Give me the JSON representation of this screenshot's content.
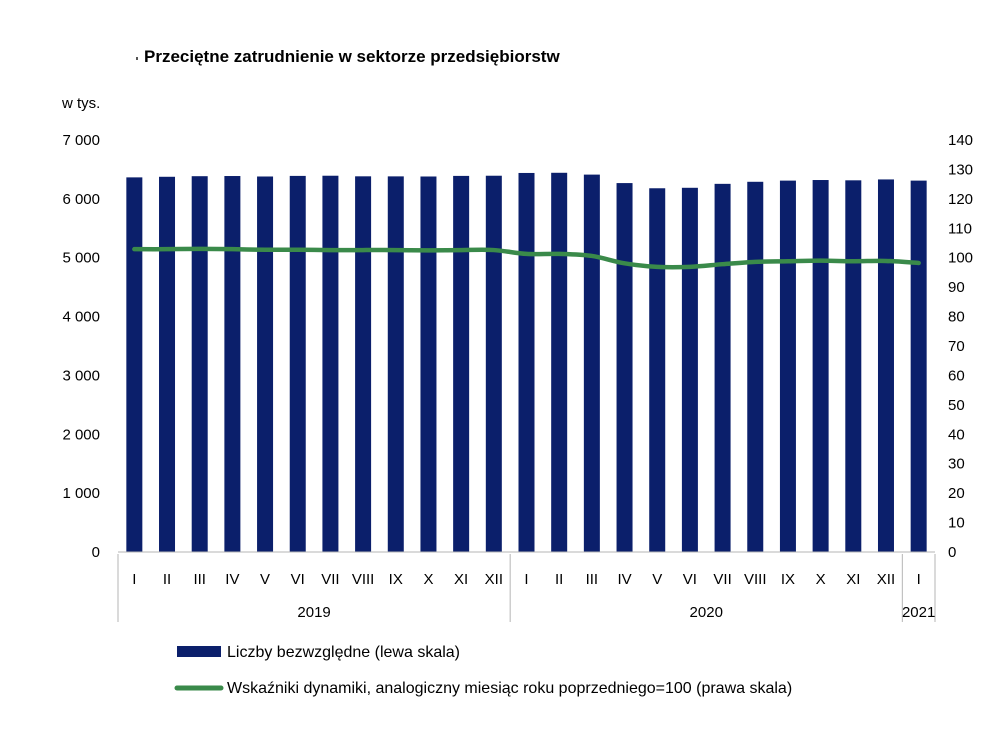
{
  "chart_data": {
    "type": "bar",
    "title": "Przeciętne zatrudnienie w sektorze przedsiębiorstw",
    "ylabel": "w tys.",
    "ylim": [
      0,
      7000
    ],
    "y_ticks": [
      "0",
      "1 000",
      "2 000",
      "3 000",
      "4 000",
      "5 000",
      "6 000",
      "7 000"
    ],
    "y2lim": [
      0,
      140
    ],
    "y2_ticks": [
      "0",
      "10",
      "20",
      "30",
      "40",
      "50",
      "60",
      "70",
      "80",
      "90",
      "100",
      "110",
      "120",
      "130",
      "140"
    ],
    "categories": [
      "I",
      "II",
      "III",
      "IV",
      "V",
      "VI",
      "VII",
      "VIII",
      "IX",
      "X",
      "XI",
      "XII",
      "I",
      "II",
      "III",
      "IV",
      "V",
      "VI",
      "VII",
      "VIII",
      "IX",
      "X",
      "XI",
      "XII",
      "I"
    ],
    "year_groups": [
      {
        "label": "2019",
        "count": 12
      },
      {
        "label": "2020",
        "count": 12
      },
      {
        "label": "2021",
        "count": 1
      }
    ],
    "series": [
      {
        "name": "Liczby bezwzględne (lewa skala)",
        "type": "bar",
        "axis": "left",
        "color": "#0b1f6b",
        "values": [
          6365,
          6375,
          6385,
          6388,
          6380,
          6390,
          6393,
          6383,
          6382,
          6380,
          6390,
          6393,
          6440,
          6443,
          6412,
          6268,
          6180,
          6188,
          6255,
          6290,
          6310,
          6320,
          6315,
          6330,
          6310
        ]
      },
      {
        "name": "Wskaźniki dynamiki, analogiczny miesiąc roku poprzedniego=100 (prawa skala)",
        "type": "line",
        "axis": "right",
        "color": "#3a8a4a",
        "values": [
          102.9,
          102.9,
          103.0,
          102.9,
          102.7,
          102.7,
          102.6,
          102.6,
          102.6,
          102.5,
          102.6,
          102.6,
          101.3,
          101.3,
          100.6,
          98.1,
          96.9,
          96.9,
          97.8,
          98.6,
          98.8,
          99.0,
          98.8,
          98.9,
          98.2
        ]
      }
    ],
    "grid": false,
    "legend_position": "bottom"
  }
}
